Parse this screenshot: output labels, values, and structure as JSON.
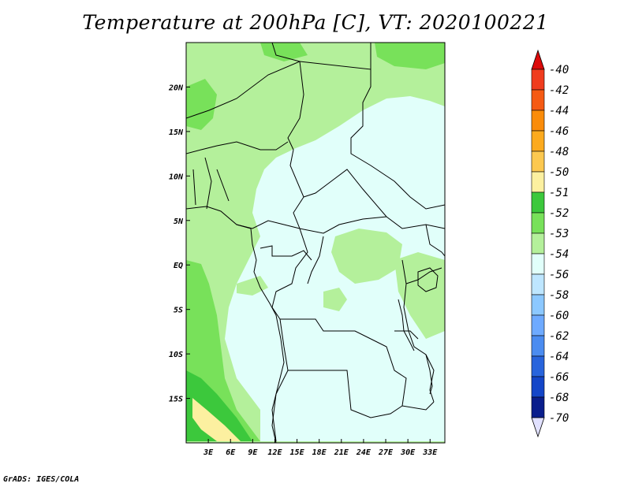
{
  "title": "Temperature at 200hPa [C], VT: 2020100221",
  "credit": "GrADS: IGES/COLA",
  "map": {
    "lon_range": [
      0,
      35
    ],
    "lat_range": [
      -20,
      25
    ],
    "lon_ticks": [
      {
        "value": 3,
        "label": "3E"
      },
      {
        "value": 6,
        "label": "6E"
      },
      {
        "value": 9,
        "label": "9E"
      },
      {
        "value": 12,
        "label": "12E"
      },
      {
        "value": 15,
        "label": "15E"
      },
      {
        "value": 18,
        "label": "18E"
      },
      {
        "value": 21,
        "label": "21E"
      },
      {
        "value": 24,
        "label": "24E"
      },
      {
        "value": 27,
        "label": "27E"
      },
      {
        "value": 30,
        "label": "30E"
      },
      {
        "value": 33,
        "label": "33E"
      }
    ],
    "lat_ticks": [
      {
        "value": 20,
        "label": "20N"
      },
      {
        "value": 15,
        "label": "15N"
      },
      {
        "value": 10,
        "label": "10N"
      },
      {
        "value": 5,
        "label": "5N"
      },
      {
        "value": 0,
        "label": "EQ"
      },
      {
        "value": -5,
        "label": "5S"
      },
      {
        "value": -10,
        "label": "10S"
      },
      {
        "value": -15,
        "label": "15S"
      }
    ]
  },
  "colorbar": {
    "labels": [
      "-40",
      "-42",
      "-44",
      "-46",
      "-48",
      "-50",
      "-51",
      "-52",
      "-53",
      "-54",
      "-56",
      "-58",
      "-60",
      "-62",
      "-64",
      "-66",
      "-68",
      "-70"
    ],
    "colors": [
      "#f03c1e",
      "#f55a14",
      "#fa8c0a",
      "#fcaa1e",
      "#fcc850",
      "#fcf0a0",
      "#3cc83c",
      "#78e15a",
      "#b4f09b",
      "#e1fffa",
      "#bee6ff",
      "#8cc8ff",
      "#6eaaff",
      "#4b8cf0",
      "#2864dc",
      "#1446c8",
      "#0a1e8c"
    ],
    "top_arrow_color": "#dc0a0a",
    "bottom_arrow_color": "#e1e1ff"
  },
  "legend_colors": {
    "darkest_green": "#3cc83c",
    "mid_green": "#78e15a",
    "light_green": "#b4f09b",
    "pale_cyan": "#e1fffa",
    "pale_yellow": "#fcf0a0"
  }
}
